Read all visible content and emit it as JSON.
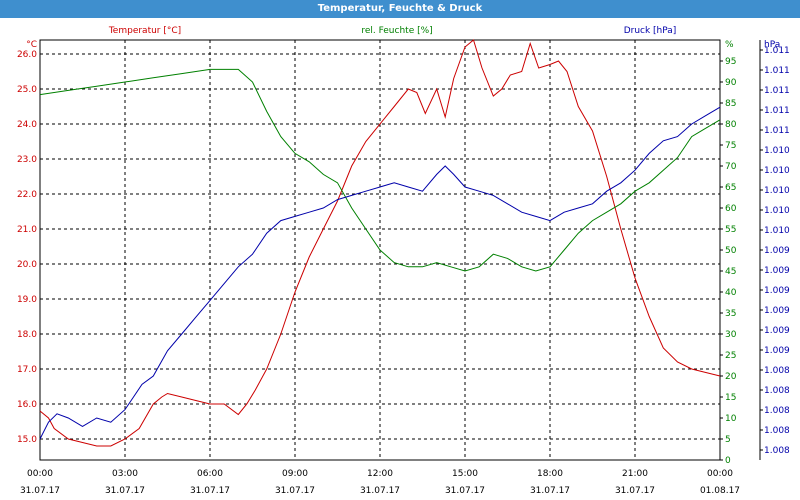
{
  "window": {
    "title": "Temperatur, Feuchte & Druck"
  },
  "colors": {
    "temperature": "#cc0000",
    "humidity": "#008000",
    "pressure": "#0000aa",
    "titlebar": "#3f8fce"
  },
  "chart_data": {
    "type": "line",
    "title": "Temperatur, Feuchte & Druck",
    "grid": true,
    "axes": {
      "left": {
        "unit": "°C",
        "ticks": [
          "15.0",
          "16.0",
          "17.0",
          "18.0",
          "19.0",
          "20.0",
          "21.0",
          "22.0",
          "23.0",
          "24.0",
          "25.0",
          "26.0"
        ],
        "range": [
          14.4,
          26.4
        ]
      },
      "right1": {
        "unit": "%",
        "ticks": [
          "0",
          "5",
          "10",
          "15",
          "20",
          "25",
          "30",
          "35",
          "40",
          "45",
          "50",
          "55",
          "60",
          "65",
          "70",
          "75",
          "80",
          "85",
          "90",
          "95"
        ],
        "range": [
          0,
          100
        ]
      },
      "right2": {
        "unit": "hPa",
        "ticks": [
          "1.008",
          "1.008",
          "1.008",
          "1.008",
          "1.008",
          "1.009",
          "1.009",
          "1.009",
          "1.009",
          "1.009",
          "1.009",
          "1.010",
          "1.010",
          "1.010",
          "1.010",
          "1.010",
          "1.011",
          "1.011",
          "1.011",
          "1.011",
          "1.011"
        ],
        "range": [
          0,
          100
        ]
      }
    },
    "x_ticks": [
      {
        "time": "00:00",
        "date": "31.07.17"
      },
      {
        "time": "03:00",
        "date": "31.07.17"
      },
      {
        "time": "06:00",
        "date": "31.07.17"
      },
      {
        "time": "09:00",
        "date": "31.07.17"
      },
      {
        "time": "12:00",
        "date": "31.07.17"
      },
      {
        "time": "15:00",
        "date": "31.07.17"
      },
      {
        "time": "18:00",
        "date": "31.07.17"
      },
      {
        "time": "21:00",
        "date": "31.07.17"
      },
      {
        "time": "00:00",
        "date": "01.08.17"
      }
    ],
    "x_range_hours": [
      0,
      24
    ],
    "series": [
      {
        "name": "Temperatur [°C]",
        "axis": "left",
        "x": [
          0,
          0.3,
          0.5,
          1,
          1.5,
          2,
          2.5,
          3,
          3.5,
          4,
          4.3,
          4.5,
          5,
          5.5,
          6,
          6.5,
          7,
          7.3,
          7.6,
          8,
          8.5,
          9,
          9.5,
          10,
          10.5,
          11,
          11.5,
          12,
          12.5,
          13,
          13.3,
          13.6,
          14,
          14.3,
          14.6,
          15,
          15.3,
          15.6,
          16,
          16.3,
          16.6,
          17,
          17.3,
          17.6,
          18,
          18.3,
          18.6,
          19,
          19.5,
          20,
          20.5,
          21,
          21.5,
          22,
          22.5,
          23,
          23.5,
          24
        ],
        "values": [
          15.8,
          15.6,
          15.3,
          15.0,
          14.9,
          14.8,
          14.8,
          15.0,
          15.3,
          16.0,
          16.2,
          16.3,
          16.2,
          16.1,
          16.0,
          16.0,
          15.7,
          16.0,
          16.4,
          17.0,
          18.0,
          19.2,
          20.2,
          21.0,
          21.8,
          22.8,
          23.5,
          24.0,
          24.5,
          25.0,
          24.9,
          24.3,
          25.0,
          24.2,
          25.3,
          26.2,
          26.4,
          25.6,
          24.8,
          25.0,
          25.4,
          25.5,
          26.3,
          25.6,
          25.7,
          25.8,
          25.5,
          24.5,
          23.8,
          22.5,
          21.0,
          19.6,
          18.5,
          17.6,
          17.2,
          17.0,
          16.9,
          16.8
        ]
      },
      {
        "name": "rel. Feuchte [%]",
        "axis": "right1",
        "x": [
          0,
          1,
          2,
          3,
          4,
          5,
          6,
          7,
          7.5,
          8,
          8.5,
          9,
          9.5,
          10,
          10.5,
          11,
          11.5,
          12,
          12.5,
          13,
          13.5,
          14,
          14.5,
          15,
          15.5,
          16,
          16.5,
          17,
          17.5,
          18,
          18.5,
          19,
          19.5,
          20,
          20.5,
          21,
          21.5,
          22,
          22.5,
          23,
          23.5,
          24
        ],
        "values": [
          87,
          88,
          89,
          90,
          91,
          92,
          93,
          93,
          90,
          83,
          77,
          73,
          71,
          68,
          66,
          60,
          55,
          50,
          47,
          46,
          46,
          47,
          46,
          45,
          46,
          49,
          48,
          46,
          45,
          46,
          50,
          54,
          57,
          59,
          61,
          64,
          66,
          69,
          72,
          77,
          79,
          81
        ]
      },
      {
        "name": "Druck [hPa]",
        "axis": "right2",
        "x": [
          0,
          0.3,
          0.6,
          1,
          1.5,
          2,
          2.5,
          3,
          3.3,
          3.6,
          4,
          4.5,
          5,
          5.5,
          6,
          6.5,
          7,
          7.5,
          8,
          8.5,
          9,
          9.5,
          10,
          10.5,
          11,
          11.5,
          12,
          12.5,
          13,
          13.5,
          14,
          14.3,
          14.6,
          15,
          15.5,
          16,
          16.5,
          17,
          17.5,
          18,
          18.5,
          19,
          19.5,
          20,
          20.5,
          21,
          21.5,
          22,
          22.5,
          23,
          23.5,
          24
        ],
        "values": [
          5,
          9,
          11,
          10,
          8,
          10,
          9,
          12,
          15,
          18,
          20,
          26,
          30,
          34,
          38,
          42,
          46,
          49,
          54,
          57,
          58,
          59,
          60,
          62,
          63,
          64,
          65,
          66,
          65,
          64,
          68,
          70,
          68,
          65,
          64,
          63,
          61,
          59,
          58,
          57,
          59,
          60,
          61,
          64,
          66,
          69,
          73,
          76,
          77,
          80,
          82,
          84
        ]
      }
    ]
  }
}
